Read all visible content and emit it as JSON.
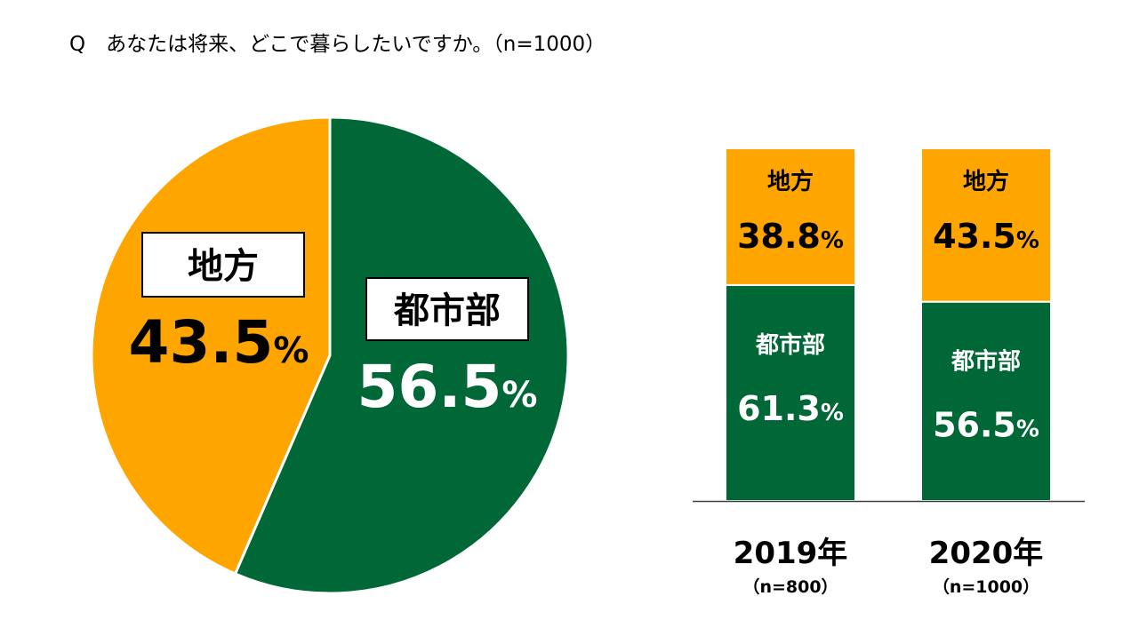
{
  "question": "Q　あなたは将来、どこで暮らしたいですか。（n=1000）",
  "colors": {
    "urban": "#006837",
    "rural": "#FFA500",
    "white": "#ffffff",
    "black": "#000000"
  },
  "chart_data": [
    {
      "type": "pie",
      "slices": [
        {
          "label": "都市部",
          "value": 56.5,
          "value_text": "56.5",
          "pct": "%",
          "color": "#006837"
        },
        {
          "label": "地方",
          "value": 43.5,
          "value_text": "43.5",
          "pct": "%",
          "color": "#FFA500"
        }
      ]
    },
    {
      "type": "bar",
      "stacked": true,
      "categories": [
        "2019年",
        "2020年"
      ],
      "sample_sizes": [
        "（n=800）",
        "（n=1000）"
      ],
      "series": [
        {
          "name": "都市部",
          "values": [
            61.3,
            56.5
          ],
          "value_texts": [
            "61.3",
            "56.5"
          ],
          "color": "#006837"
        },
        {
          "name": "地方",
          "values": [
            38.8,
            43.5
          ],
          "value_texts": [
            "38.8",
            "43.5"
          ],
          "color": "#FFA500"
        }
      ],
      "pct": "%"
    }
  ]
}
